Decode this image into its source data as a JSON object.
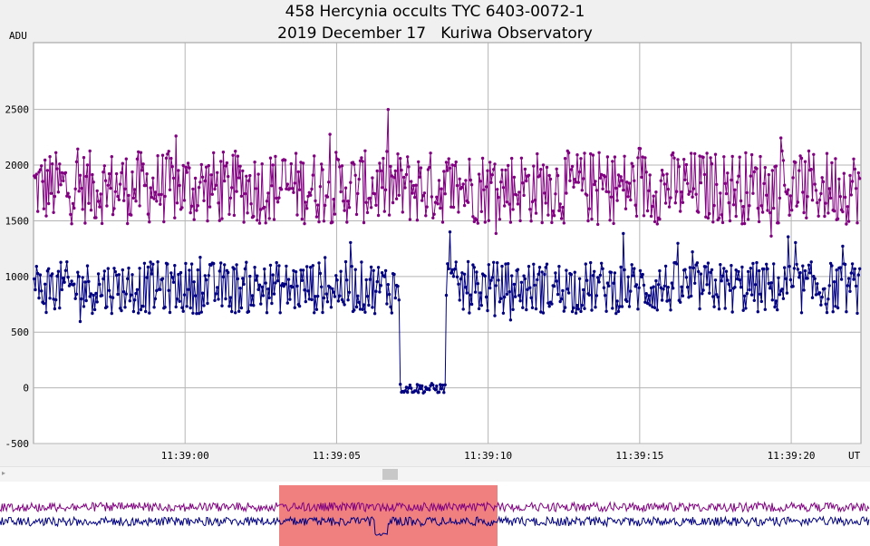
{
  "chart_data": {
    "type": "line",
    "title": "458 Hercynia occults TYC 6403-0072-1",
    "subtitle": "2019 December 17   Kuriwa Observatory",
    "ylabel": "ADU",
    "xlabel": "UT",
    "ylim": [
      -500,
      3100
    ],
    "xlim": [
      "11:38:55.0",
      "11:39:22.3"
    ],
    "yticks": [
      "-500",
      "0",
      "500",
      "1000",
      "1500",
      "2000",
      "2500"
    ],
    "xticks": [
      "11:39:00",
      "11:39:05",
      "11:39:10",
      "11:39:15",
      "11:39:20"
    ],
    "grid": true,
    "series": [
      {
        "color": "#800080",
        "sample_interval_s": 0.04,
        "mean_approx": 1800,
        "range_approx": [
          1300,
          2500
        ]
      },
      {
        "color": "#000080",
        "sample_interval_s": 0.04,
        "mean_approx": 900,
        "range_approx": [
          550,
          1400
        ],
        "occultation": {
          "start": "11:39:07.1",
          "end": "11:39:08.6",
          "level_approx": 0,
          "min_approx": -100
        }
      }
    ]
  },
  "overview": {
    "highlight_color": "#f08080",
    "series_colors": [
      "#800080",
      "#000080"
    ]
  }
}
